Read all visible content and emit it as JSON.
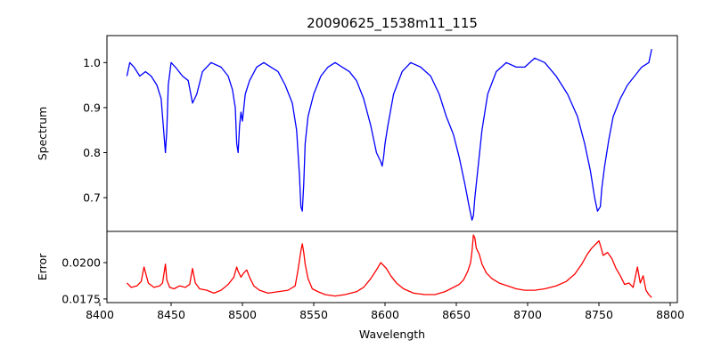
{
  "chart_data": {
    "type": "line",
    "title": "20090625_1538m11_115",
    "xlabel": "Wavelength",
    "x_ticks": [
      8400,
      8450,
      8500,
      8550,
      8600,
      8650,
      8700,
      8750,
      8800
    ],
    "xlim": [
      8405,
      8805
    ],
    "panels": [
      {
        "name": "spectrum",
        "ylabel": "Spectrum",
        "ylim": [
          0.625,
          1.06
        ],
        "y_ticks": [
          0.7,
          0.8,
          0.9,
          1.0
        ],
        "y_tick_labels": [
          "0.7",
          "0.8",
          "0.9",
          "1.0"
        ],
        "series": [
          {
            "name": "spectrum",
            "color": "#0000ff",
            "x": [
              8419,
              8421,
              8424,
              8428,
              8432,
              8436,
              8440,
              8443,
              8445,
              8446,
              8447,
              8448,
              8450,
              8453,
              8458,
              8462,
              8465,
              8468,
              8472,
              8478,
              8485,
              8490,
              8493,
              8495,
              8496,
              8497,
              8498,
              8499,
              8500,
              8502,
              8505,
              8510,
              8515,
              8520,
              8525,
              8530,
              8535,
              8538,
              8540,
              8541,
              8542,
              8543,
              8544,
              8546,
              8550,
              8555,
              8560,
              8565,
              8570,
              8575,
              8580,
              8585,
              8590,
              8594,
              8597,
              8598,
              8599,
              8600,
              8602,
              8606,
              8612,
              8618,
              8625,
              8632,
              8638,
              8643,
              8648,
              8652,
              8656,
              8659,
              8661,
              8662,
              8663,
              8665,
              8668,
              8672,
              8678,
              8685,
              8692,
              8698,
              8705,
              8712,
              8720,
              8728,
              8735,
              8740,
              8744,
              8747,
              8749,
              8751,
              8752,
              8754,
              8757,
              8760,
              8765,
              8770,
              8775,
              8780,
              8785,
              8787
            ],
            "y": [
              0.97,
              1.0,
              0.99,
              0.97,
              0.98,
              0.97,
              0.95,
              0.92,
              0.84,
              0.8,
              0.85,
              0.95,
              1.0,
              0.99,
              0.97,
              0.96,
              0.91,
              0.93,
              0.98,
              1.0,
              0.99,
              0.97,
              0.94,
              0.9,
              0.82,
              0.8,
              0.86,
              0.89,
              0.87,
              0.93,
              0.96,
              0.99,
              1.0,
              0.99,
              0.98,
              0.95,
              0.91,
              0.85,
              0.75,
              0.68,
              0.67,
              0.73,
              0.82,
              0.88,
              0.93,
              0.97,
              0.99,
              1.0,
              0.99,
              0.98,
              0.96,
              0.92,
              0.86,
              0.8,
              0.78,
              0.77,
              0.79,
              0.82,
              0.86,
              0.93,
              0.98,
              1.0,
              0.99,
              0.97,
              0.93,
              0.88,
              0.84,
              0.79,
              0.73,
              0.68,
              0.65,
              0.66,
              0.7,
              0.76,
              0.85,
              0.93,
              0.98,
              1.0,
              0.99,
              0.99,
              1.01,
              1.0,
              0.97,
              0.93,
              0.88,
              0.82,
              0.76,
              0.7,
              0.67,
              0.68,
              0.72,
              0.77,
              0.83,
              0.88,
              0.92,
              0.95,
              0.97,
              0.99,
              1.0,
              1.03
            ]
          }
        ]
      },
      {
        "name": "error",
        "ylabel": "Error",
        "ylim": [
          0.01725,
          0.02215
        ],
        "y_ticks": [
          0.0175,
          0.02
        ],
        "y_tick_labels": [
          "0.0175",
          "0.0200"
        ],
        "series": [
          {
            "name": "error",
            "color": "#ff0000",
            "x": [
              8419,
              8422,
              8426,
              8429,
              8431,
              8434,
              8438,
              8442,
              8444,
              8446,
              8447,
              8449,
              8452,
              8456,
              8460,
              8463,
              8465,
              8467,
              8470,
              8475,
              8480,
              8485,
              8490,
              8494,
              8496,
              8497,
              8499,
              8501,
              8503,
              8505,
              8508,
              8512,
              8518,
              8525,
              8532,
              8537,
              8539,
              8541,
              8542,
              8543,
              8544,
              8546,
              8549,
              8553,
              8558,
              8565,
              8572,
              8580,
              8585,
              8590,
              8594,
              8597,
              8599,
              8601,
              8604,
              8608,
              8613,
              8620,
              8628,
              8635,
              8642,
              8648,
              8652,
              8655,
              8658,
              8660,
              8661,
              8662,
              8663,
              8664,
              8666,
              8668,
              8671,
              8675,
              8680,
              8686,
              8692,
              8698,
              8705,
              8712,
              8720,
              8727,
              8733,
              8738,
              8742,
              8745,
              8748,
              8750,
              8751,
              8753,
              8756,
              8759,
              8762,
              8765,
              8768,
              8771,
              8774,
              8777,
              8779,
              8781,
              8783,
              8785,
              8787
            ],
            "y": [
              0.0186,
              0.0183,
              0.0184,
              0.0187,
              0.0197,
              0.0186,
              0.0183,
              0.0184,
              0.0186,
              0.0199,
              0.0188,
              0.0183,
              0.0182,
              0.0184,
              0.0183,
              0.0185,
              0.0196,
              0.0186,
              0.0182,
              0.0181,
              0.0179,
              0.0181,
              0.0185,
              0.019,
              0.0197,
              0.0194,
              0.019,
              0.0193,
              0.0195,
              0.019,
              0.0184,
              0.0181,
              0.0179,
              0.018,
              0.0181,
              0.0184,
              0.0195,
              0.0208,
              0.0213,
              0.0207,
              0.0199,
              0.0189,
              0.0182,
              0.018,
              0.0178,
              0.0177,
              0.0178,
              0.018,
              0.0183,
              0.0189,
              0.0195,
              0.02,
              0.0198,
              0.0196,
              0.0191,
              0.0186,
              0.0182,
              0.0179,
              0.0178,
              0.0178,
              0.018,
              0.0183,
              0.0185,
              0.0188,
              0.0194,
              0.02,
              0.0208,
              0.0219,
              0.0217,
              0.021,
              0.0206,
              0.0199,
              0.0193,
              0.0189,
              0.0186,
              0.0184,
              0.0182,
              0.0181,
              0.0181,
              0.0182,
              0.0184,
              0.0187,
              0.0192,
              0.0199,
              0.0206,
              0.021,
              0.0213,
              0.0215,
              0.0212,
              0.0205,
              0.0207,
              0.0203,
              0.0196,
              0.0191,
              0.0185,
              0.0186,
              0.0183,
              0.0197,
              0.0186,
              0.0191,
              0.0181,
              0.0178,
              0.0176
            ]
          }
        ]
      }
    ]
  }
}
